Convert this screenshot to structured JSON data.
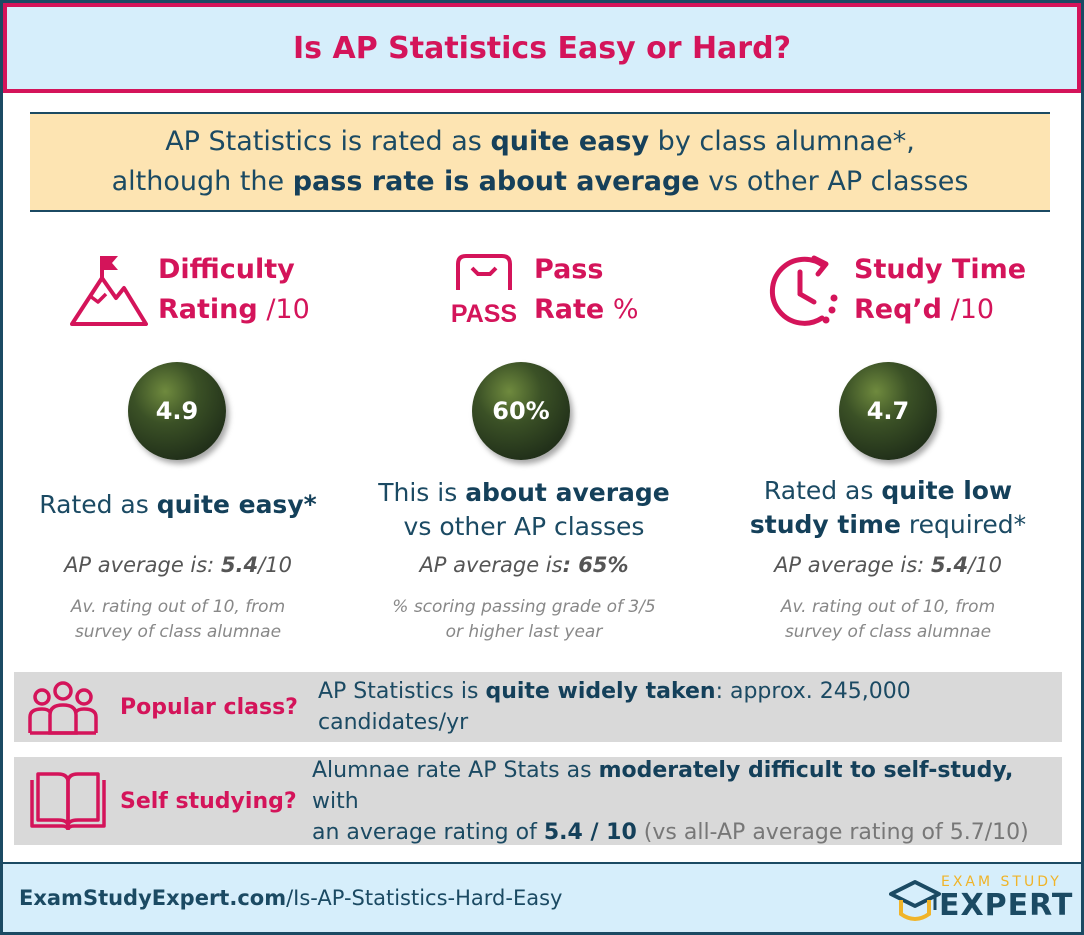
{
  "header": {
    "title": "Is AP Statistics Easy or Hard?"
  },
  "banner": {
    "line1_pre": "AP Statistics is rated as ",
    "line1_bold": "quite easy",
    "line1_post": " by class alumnae*,",
    "line2_pre": "although the ",
    "line2_bold": "pass rate is about average",
    "line2_post": " vs other AP classes"
  },
  "difficulty": {
    "icon": "mountain-flag-icon",
    "title_line1": "Difficulty",
    "title_line2": "Rating",
    "unit": " /10",
    "value": "4.9",
    "desc_pre": "Rated as ",
    "desc_bold": "quite easy*",
    "avg_label": "AP average is: ",
    "avg_value": "5.4",
    "avg_suffix": "/10",
    "note_line1": "Av. rating out of 10, from",
    "note_line2": "survey of class alumnae"
  },
  "pass": {
    "icon": "pass-icon",
    "icon_text": "PASS",
    "title_line1": "Pass",
    "title_line2": "Rate",
    "unit": " %",
    "value": "60%",
    "desc_line1_pre": "This is ",
    "desc_line1_bold": "about average",
    "desc_line2": "vs other AP classes",
    "avg_label": "AP average is",
    "avg_value": ": 65%",
    "note_line1": "% scoring passing grade of 3/5",
    "note_line2": "or higher last year"
  },
  "study": {
    "icon": "clock-icon",
    "title_line1": "Study Time",
    "title_line2": "Req’d",
    "unit": " /10",
    "value": "4.7",
    "desc_line1_pre": "Rated as ",
    "desc_line1_bold": "quite low",
    "desc_line2_bold": "study time",
    "desc_line2_post": " required*",
    "avg_label": "AP average is: ",
    "avg_value": "5.4",
    "avg_suffix": "/10",
    "note_line1": "Av. rating out of 10, from",
    "note_line2": "survey of class alumnae"
  },
  "popular": {
    "icon": "people-group-icon",
    "label": "Popular class?",
    "text_pre": "AP Statistics is ",
    "text_bold": "quite widely taken",
    "text_post": ": approx. 245,000  candidates/yr"
  },
  "self_study": {
    "icon": "open-book-icon",
    "label": "Self studying?",
    "line1_pre": "Alumnae rate AP Stats as ",
    "line1_bold": "moderately difficult to self-study,",
    "line1_post": " with",
    "line2_pre": "an average rating of ",
    "line2_bold": "5.4 / 10",
    "line2_muted": " (vs all-AP average rating of 5.7/10)"
  },
  "footer": {
    "url_bold": "ExamStudyExpert.com",
    "url_rest": "/Is-AP-Statistics-Hard-Easy",
    "logo_line1": "EXAM STUDY",
    "logo_line2": "EXPERT",
    "logo_icon": "graduation-cap-icon"
  },
  "colors": {
    "accent": "#d4145a",
    "navy": "#1b4a63",
    "banner": "#fde4b2",
    "header_bg": "#d6eefb",
    "strip": "#d9d9d9"
  }
}
